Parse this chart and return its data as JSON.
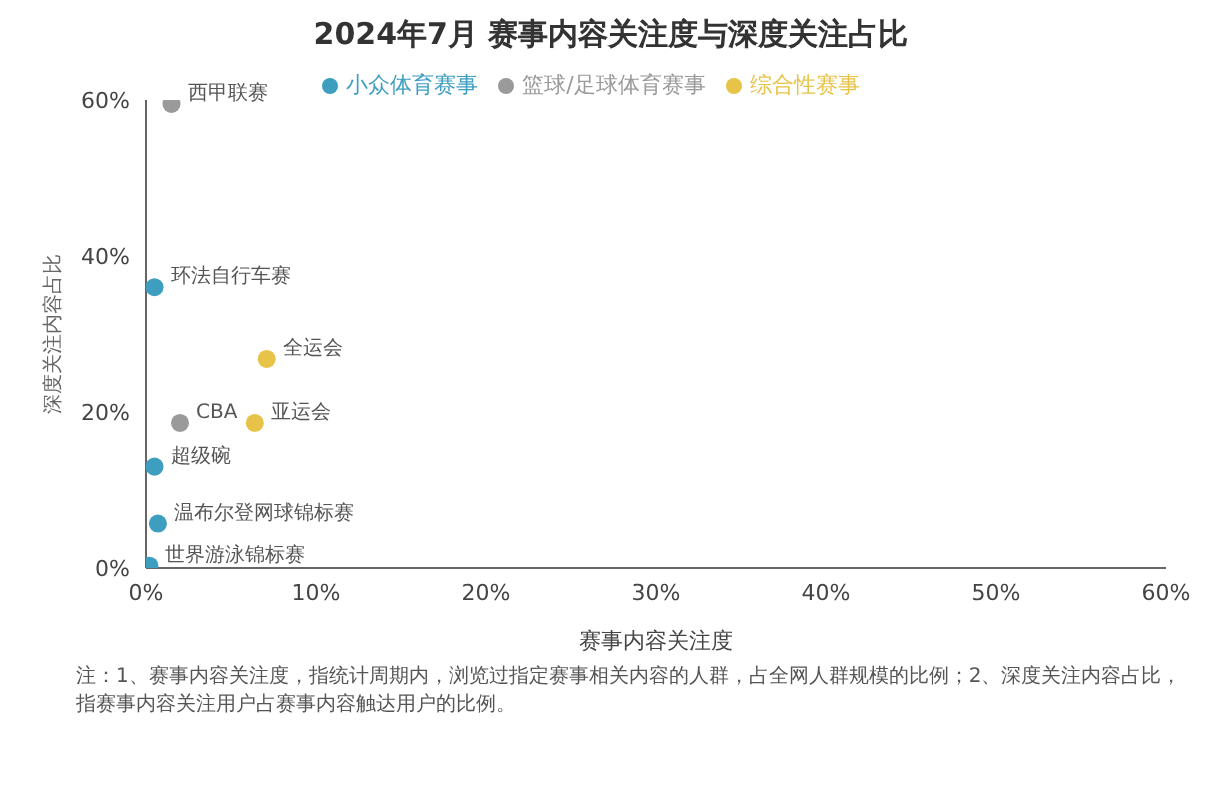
{
  "chart_data": {
    "type": "scatter",
    "title": "2024年7月 赛事内容关注度与深度关注占比",
    "xlabel": "赛事内容关注度",
    "ylabel": "深度关注内容占比",
    "series": [
      {
        "name": "综合性赛事",
        "color": "#e8c34a",
        "x": [
          7.1,
          6.4
        ],
        "values": [
          26.8,
          18.6
        ]
      },
      {
        "name": "篮球/足球体育赛事",
        "color": "#9a9a9a",
        "x": [
          1.5,
          2
        ],
        "values": [
          59.5,
          18.6
        ]
      },
      {
        "name": "小众体育赛事",
        "color": "#3d9ec0",
        "x": [
          0.5,
          0.5,
          0.7,
          0.2
        ],
        "values": [
          36,
          13,
          5.7,
          0.3
        ]
      }
    ],
    "xlim": [
      0,
      60
    ],
    "xticks": [
      {
        "value": 0,
        "label": "0%"
      },
      {
        "value": 10,
        "label": "10%"
      },
      {
        "value": 20,
        "label": "20%"
      },
      {
        "value": 30,
        "label": "30%"
      },
      {
        "value": 40,
        "label": "40%"
      },
      {
        "value": 50,
        "label": "50%"
      },
      {
        "value": 60,
        "label": "60%"
      }
    ],
    "ylim": [
      0,
      60
    ],
    "yticks": [
      {
        "value": 0,
        "label": "0%"
      },
      {
        "value": 20,
        "label": "20%"
      },
      {
        "value": 40,
        "label": "40%"
      },
      {
        "value": 60,
        "label": "60%"
      }
    ],
    "grid": false,
    "legend": "top",
    "marker": "circle",
    "annotations": [
      {
        "text": "全运会",
        "x": 7.1,
        "y": 26.8
      },
      {
        "text": "亚运会",
        "x": 6.4,
        "y": 18.6
      },
      {
        "text": "西甲联赛",
        "x": 1.5,
        "y": 59.5
      },
      {
        "text": "CBA",
        "x": 2,
        "y": 18.6
      },
      {
        "text": "环法自行车赛",
        "x": 0.5,
        "y": 36
      },
      {
        "text": "超级碗",
        "x": 0.5,
        "y": 13
      },
      {
        "text": "温布尔登网球锦标赛",
        "x": 0.7,
        "y": 5.7
      },
      {
        "text": "世界游泳锦标赛",
        "x": 0.2,
        "y": 0.3
      },
      "注：1、赛事内容关注度，指统计周期内，浏览过指定赛事相关内容的人群，占全网人群规模的比例；2、深度关注内容占比，指赛事内容关注用户占赛事内容触达用户的比例。"
    ]
  }
}
